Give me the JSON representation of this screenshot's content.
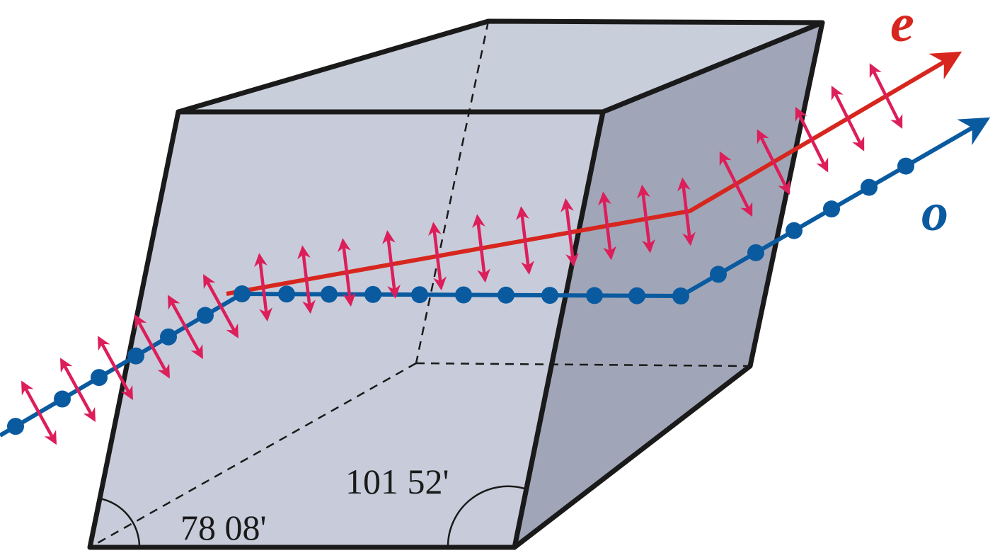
{
  "labels": {
    "e": "e",
    "o": "o",
    "angle_obtuse": "101 52'",
    "angle_acute": "78 08'"
  }
}
